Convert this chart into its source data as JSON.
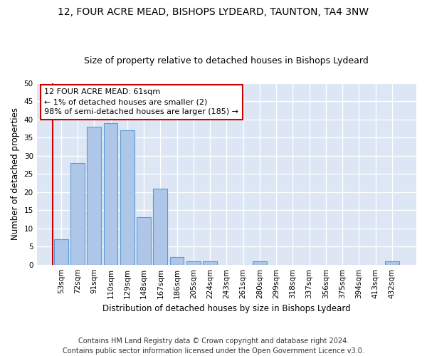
{
  "title": "12, FOUR ACRE MEAD, BISHOPS LYDEARD, TAUNTON, TA4 3NW",
  "subtitle": "Size of property relative to detached houses in Bishops Lydeard",
  "xlabel": "Distribution of detached houses by size in Bishops Lydeard",
  "ylabel": "Number of detached properties",
  "categories": [
    "53sqm",
    "72sqm",
    "91sqm",
    "110sqm",
    "129sqm",
    "148sqm",
    "167sqm",
    "186sqm",
    "205sqm",
    "224sqm",
    "243sqm",
    "261sqm",
    "280sqm",
    "299sqm",
    "318sqm",
    "337sqm",
    "356sqm",
    "375sqm",
    "394sqm",
    "413sqm",
    "432sqm"
  ],
  "values": [
    7,
    28,
    38,
    39,
    37,
    13,
    21,
    2,
    1,
    1,
    0,
    0,
    1,
    0,
    0,
    0,
    0,
    0,
    0,
    0,
    1
  ],
  "bar_color": "#aec6e8",
  "bar_edge_color": "#5b9bd5",
  "annotation_box_color": "#ffffff",
  "annotation_box_edge": "#cc0000",
  "annotation_line1": "12 FOUR ACRE MEAD: 61sqm",
  "annotation_line2": "← 1% of detached houses are smaller (2)",
  "annotation_line3": "98% of semi-detached houses are larger (185) →",
  "ylim": [
    0,
    50
  ],
  "yticks": [
    0,
    5,
    10,
    15,
    20,
    25,
    30,
    35,
    40,
    45,
    50
  ],
  "bg_color": "#dce6f5",
  "grid_color": "#ffffff",
  "footer_line1": "Contains HM Land Registry data © Crown copyright and database right 2024.",
  "footer_line2": "Contains public sector information licensed under the Open Government Licence v3.0.",
  "title_fontsize": 10,
  "subtitle_fontsize": 9,
  "axis_label_fontsize": 8.5,
  "tick_fontsize": 7.5,
  "annotation_fontsize": 8,
  "footer_fontsize": 7
}
